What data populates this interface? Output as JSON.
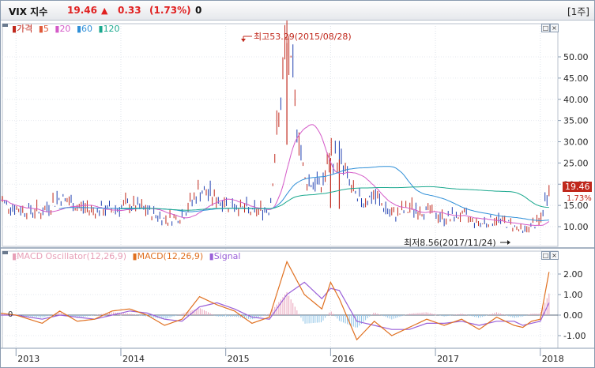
{
  "title_bar": {
    "name": "VIX 지수",
    "price": "19.46",
    "direction_arrow": "▲",
    "change": "0.33",
    "change_pct": "(1.73%)",
    "volume": "0",
    "period_button": "[1주]"
  },
  "price_panel": {
    "legend": {
      "price_label": "가격",
      "ma_labels": [
        "5",
        "20",
        "60",
        "120"
      ],
      "colors": {
        "price": "#c0281c",
        "ma5": "#e05a3a",
        "ma20": "#d45ac8",
        "ma60": "#2f8fd8",
        "ma120": "#1aa88e"
      }
    },
    "high_annotation": "최고53.29(2015/08/28)",
    "low_annotation": "최저8.56(2017/11/24)",
    "current_price_tag": "19.46",
    "current_pct_tag": "1.73%"
  },
  "macd_panel": {
    "legend": {
      "osc_label": "MACD Oscillator(12,26,9)",
      "macd_label": "MACD(12,26,9)",
      "signal_label": "Signal",
      "colors": {
        "osc": "#e8a0b8",
        "macd": "#e07020",
        "signal": "#9a60d8"
      }
    },
    "zero_label": "0"
  },
  "x_axis_labels": [
    "2013",
    "2014",
    "2015",
    "2016",
    "2017",
    "2018"
  ],
  "window_buttons": {
    "minimize": "□",
    "close": "×"
  },
  "chart_data": [
    {
      "type": "line",
      "title": "VIX 지수",
      "y_axis_ticks": [
        "50.00",
        "45.00",
        "40.00",
        "35.00",
        "30.00",
        "25.00",
        "20.00",
        "15.00",
        "10.00"
      ],
      "ylim": [
        7.5,
        55
      ],
      "x_dates": [
        "2012-11",
        "2013-01",
        "2013-04",
        "2013-06",
        "2013-08",
        "2013-10",
        "2013-12",
        "2014-02",
        "2014-04",
        "2014-06",
        "2014-08",
        "2014-10",
        "2014-12",
        "2015-02",
        "2015-04",
        "2015-06",
        "2015-08",
        "2015-10",
        "2015-12",
        "2016-01",
        "2016-02",
        "2016-04",
        "2016-06",
        "2016-08",
        "2016-10",
        "2016-12",
        "2017-02",
        "2017-04",
        "2017-06",
        "2017-08",
        "2017-10",
        "2017-11",
        "2017-12",
        "2018-01",
        "2018-02"
      ],
      "series": [
        {
          "name": "가격",
          "values": [
            16.5,
            14.0,
            13.2,
            16.8,
            14.5,
            13.6,
            13.8,
            14.9,
            13.5,
            11.6,
            12.3,
            18.5,
            16.1,
            15.0,
            13.2,
            14.0,
            53.29,
            21.0,
            19.2,
            26.2,
            25.8,
            15.6,
            16.9,
            12.4,
            14.0,
            13.6,
            11.7,
            12.5,
            10.6,
            11.5,
            10.1,
            8.56,
            10.2,
            10.9,
            19.46
          ]
        }
      ]
    },
    {
      "type": "line",
      "title": "MACD(12,26,9)",
      "y_axis_ticks": [
        "2.00",
        "1.00",
        "0.00",
        "-1.00"
      ],
      "ylim": [
        -1.5,
        2.6
      ],
      "x_dates": [
        "2012-11",
        "2013-01",
        "2013-04",
        "2013-06",
        "2013-08",
        "2013-10",
        "2013-12",
        "2014-02",
        "2014-04",
        "2014-06",
        "2014-08",
        "2014-10",
        "2014-12",
        "2015-02",
        "2015-04",
        "2015-06",
        "2015-08",
        "2015-10",
        "2015-12",
        "2016-01",
        "2016-02",
        "2016-04",
        "2016-06",
        "2016-08",
        "2016-10",
        "2016-12",
        "2017-02",
        "2017-04",
        "2017-06",
        "2017-08",
        "2017-10",
        "2017-11",
        "2017-12",
        "2018-01",
        "2018-02"
      ],
      "series": [
        {
          "name": "MACD(12,26,9)",
          "values": [
            0.1,
            0.0,
            -0.4,
            0.2,
            -0.3,
            -0.2,
            0.2,
            0.3,
            0.0,
            -0.5,
            -0.2,
            0.9,
            0.5,
            0.2,
            -0.4,
            -0.1,
            2.6,
            1.0,
            0.3,
            1.6,
            0.8,
            -1.2,
            -0.3,
            -1.0,
            -0.6,
            -0.2,
            -0.5,
            -0.2,
            -0.7,
            -0.1,
            -0.5,
            -0.6,
            -0.3,
            -0.2,
            2.1
          ]
        },
        {
          "name": "Signal",
          "values": [
            0.0,
            0.0,
            -0.2,
            0.0,
            -0.1,
            -0.2,
            0.0,
            0.2,
            0.1,
            -0.2,
            -0.3,
            0.4,
            0.6,
            0.3,
            -0.1,
            -0.2,
            1.0,
            1.6,
            0.8,
            1.3,
            1.2,
            -0.3,
            -0.5,
            -0.7,
            -0.7,
            -0.4,
            -0.4,
            -0.3,
            -0.5,
            -0.3,
            -0.3,
            -0.5,
            -0.4,
            -0.3,
            0.6
          ]
        }
      ]
    }
  ]
}
